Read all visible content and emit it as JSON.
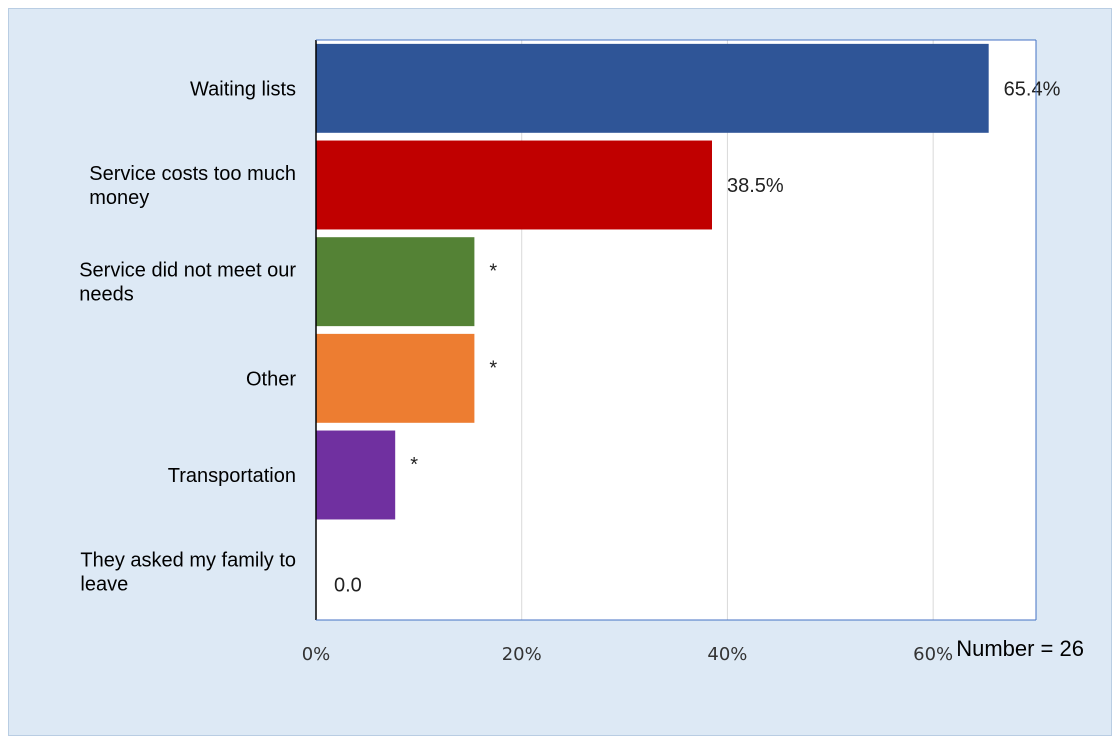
{
  "chart_data": {
    "type": "bar",
    "orientation": "horizontal",
    "categories": [
      "Waiting lists",
      "Service costs too much money",
      "Service did not meet our needs",
      "Other",
      "Transportation",
      "They asked my family to leave"
    ],
    "values": [
      65.4,
      38.5,
      15.4,
      15.4,
      7.7,
      0
    ],
    "data_labels": [
      "65.4%",
      "38.5%",
      "*",
      "*",
      "*",
      "0.0"
    ],
    "colors": [
      "#2f5597",
      "#c00000",
      "#548235",
      "#ed7d31",
      "#7030a0",
      "#ffffff"
    ],
    "x_ticks": [
      0,
      20,
      40,
      60
    ],
    "x_tick_labels": [
      "0%",
      "20%",
      "40%",
      "60%"
    ],
    "xlim": [
      0,
      70
    ],
    "grid": true,
    "title": "",
    "xlabel": "",
    "ylabel": ""
  },
  "footnote": "Number = 26"
}
